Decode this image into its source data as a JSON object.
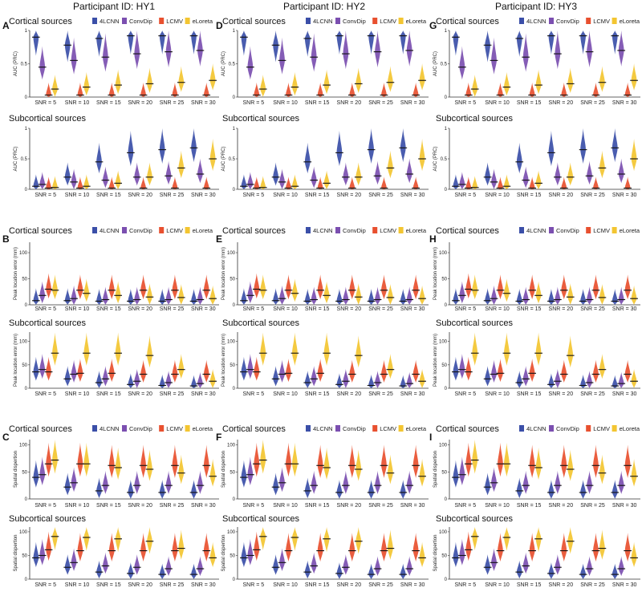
{
  "figure": {
    "participants": [
      "Participant ID: HY1",
      "Participant ID: HY2",
      "Participant ID: HY3"
    ],
    "panel_labels": [
      [
        "A",
        "B",
        "C"
      ],
      [
        "D",
        "E",
        "F"
      ],
      [
        "G",
        "H",
        "I"
      ]
    ]
  },
  "colors": {
    "4LCNN": "#3b4fa8",
    "ConvDip": "#7b4fb0",
    "LCMV": "#e8502f",
    "eLoreta": "#f3c531"
  },
  "chart_data": [
    {
      "type": "violin",
      "row": "auc",
      "title": "Cortical sources",
      "ylabel": "AUC (PRC)",
      "ylim": [
        0,
        1
      ],
      "yticks": [
        "0",
        "0.5",
        "1"
      ],
      "categories": [
        "SNR = 5",
        "SNR = 10",
        "SNR = 15",
        "SNR = 20",
        "SNR = 25",
        "SNR = 30"
      ],
      "legend": [
        "4LCNN",
        "ConvDip",
        "LCMV",
        "eLoreta"
      ],
      "series": [
        {
          "name": "4LCNN",
          "values": [
            0.9,
            0.78,
            0.88,
            0.92,
            0.92,
            0.92
          ]
        },
        {
          "name": "ConvDip",
          "values": [
            0.45,
            0.55,
            0.6,
            0.65,
            0.68,
            0.7
          ]
        },
        {
          "name": "LCMV",
          "values": [
            0.03,
            0.03,
            0.03,
            0.03,
            0.03,
            0.03
          ]
        },
        {
          "name": "eLoreta",
          "values": [
            0.12,
            0.15,
            0.18,
            0.2,
            0.22,
            0.25
          ]
        }
      ]
    },
    {
      "type": "violin",
      "row": "auc",
      "title": "Subcortical sources",
      "ylabel": "AUC (PRC)",
      "ylim": [
        0,
        1
      ],
      "yticks": [
        "0",
        "0.5",
        "1"
      ],
      "categories": [
        "SNR = 5",
        "SNR = 10",
        "SNR = 15",
        "SNR = 20",
        "SNR = 25",
        "SNR = 30"
      ],
      "legend": [],
      "series": [
        {
          "name": "4LCNN",
          "values": [
            0.05,
            0.2,
            0.45,
            0.6,
            0.65,
            0.68
          ]
        },
        {
          "name": "ConvDip",
          "values": [
            0.08,
            0.12,
            0.15,
            0.2,
            0.22,
            0.25
          ]
        },
        {
          "name": "LCMV",
          "values": [
            0.02,
            0.02,
            0.02,
            0.02,
            0.02,
            0.02
          ]
        },
        {
          "name": "eLoreta",
          "values": [
            0.03,
            0.05,
            0.1,
            0.2,
            0.35,
            0.5
          ]
        }
      ]
    },
    {
      "type": "violin",
      "row": "ple",
      "title": "Cortical sources",
      "ylabel": "Peak location error (mm)",
      "ylim": [
        0,
        120
      ],
      "yticks": [
        "0",
        "50",
        "100"
      ],
      "categories": [
        "SNR = 5",
        "SNR = 10",
        "SNR = 15",
        "SNR = 20",
        "SNR = 25",
        "SNR = 30"
      ],
      "legend": [
        "4LCNN",
        "ConvDip",
        "LCMV",
        "eLoreta"
      ],
      "series": [
        {
          "name": "4LCNN",
          "values": [
            8,
            8,
            7,
            7,
            7,
            7
          ]
        },
        {
          "name": "ConvDip",
          "values": [
            18,
            12,
            10,
            10,
            10,
            10
          ]
        },
        {
          "name": "LCMV",
          "values": [
            30,
            28,
            28,
            28,
            28,
            28
          ]
        },
        {
          "name": "eLoreta",
          "values": [
            28,
            22,
            18,
            15,
            14,
            12
          ]
        }
      ]
    },
    {
      "type": "violin",
      "row": "ple",
      "title": "Subcortical sources",
      "ylabel": "Peak location error (mm)",
      "ylim": [
        0,
        120
      ],
      "yticks": [
        "0",
        "50",
        "100"
      ],
      "categories": [
        "SNR = 5",
        "SNR = 10",
        "SNR = 15",
        "SNR = 20",
        "SNR = 25",
        "SNR = 30"
      ],
      "legend": [],
      "series": [
        {
          "name": "4LCNN",
          "values": [
            35,
            20,
            12,
            8,
            6,
            5
          ]
        },
        {
          "name": "ConvDip",
          "values": [
            40,
            30,
            20,
            15,
            12,
            10
          ]
        },
        {
          "name": "LCMV",
          "values": [
            35,
            32,
            32,
            30,
            30,
            30
          ]
        },
        {
          "name": "eLoreta",
          "values": [
            75,
            75,
            75,
            70,
            40,
            15
          ]
        }
      ]
    },
    {
      "type": "violin",
      "row": "sd",
      "title": "Cortical sources",
      "ylabel": "Spatial dispertion",
      "ylim": [
        0,
        110
      ],
      "yticks": [
        "0",
        "50",
        "100"
      ],
      "categories": [
        "SNR = 5",
        "SNR = 10",
        "SNR = 15",
        "SNR = 20",
        "SNR = 25",
        "SNR = 30"
      ],
      "legend": [
        "4LCNN",
        "ConvDip",
        "LCMV",
        "eLoreta"
      ],
      "series": [
        {
          "name": "4LCNN",
          "values": [
            40,
            22,
            15,
            12,
            12,
            12
          ]
        },
        {
          "name": "ConvDip",
          "values": [
            45,
            30,
            25,
            25,
            25,
            25
          ]
        },
        {
          "name": "LCMV",
          "values": [
            65,
            65,
            62,
            62,
            62,
            62
          ]
        },
        {
          "name": "eLoreta",
          "values": [
            72,
            65,
            58,
            55,
            48,
            42
          ]
        }
      ]
    },
    {
      "type": "violin",
      "row": "sd",
      "title": "Subcortical sources",
      "ylabel": "Spatial dispertion",
      "ylim": [
        0,
        110
      ],
      "yticks": [
        "0",
        "50",
        "100"
      ],
      "categories": [
        "SNR = 5",
        "SNR = 10",
        "SNR = 15",
        "SNR = 20",
        "SNR = 25",
        "SNR = 30"
      ],
      "legend": [],
      "series": [
        {
          "name": "4LCNN",
          "values": [
            45,
            25,
            15,
            12,
            10,
            10
          ]
        },
        {
          "name": "ConvDip",
          "values": [
            50,
            35,
            28,
            25,
            22,
            22
          ]
        },
        {
          "name": "LCMV",
          "values": [
            62,
            60,
            60,
            60,
            60,
            60
          ]
        },
        {
          "name": "eLoreta",
          "values": [
            90,
            88,
            85,
            80,
            65,
            45
          ]
        }
      ]
    }
  ]
}
